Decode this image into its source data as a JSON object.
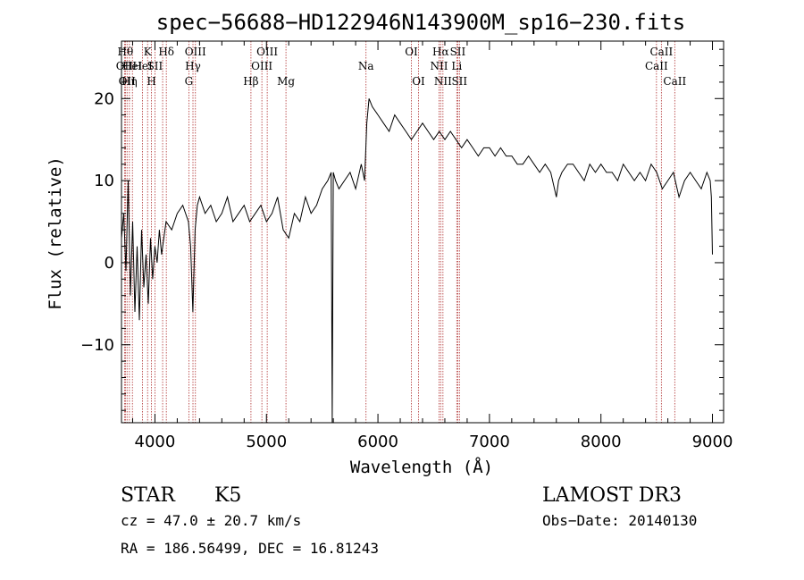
{
  "chart_data": {
    "type": "line",
    "title": "spec−56688−HD122946N143900M_sp16−230.fits",
    "xlabel": "Wavelength (Å)",
    "ylabel": "Flux (relative)",
    "xlim": [
      3700,
      9100
    ],
    "ylim": [
      -19.5,
      27
    ],
    "xticks": [
      {
        "v": 4000,
        "label": "4000"
      },
      {
        "v": 5000,
        "label": "5000"
      },
      {
        "v": 6000,
        "label": "6000"
      },
      {
        "v": 7000,
        "label": "7000"
      },
      {
        "v": 8000,
        "label": "8000"
      },
      {
        "v": 9000,
        "label": "9000"
      }
    ],
    "yticks": [
      {
        "v": -10,
        "label": "−10"
      },
      {
        "v": 0,
        "label": "0"
      },
      {
        "v": 10,
        "label": "10"
      },
      {
        "v": 20,
        "label": "20"
      }
    ],
    "line_color": "#000000",
    "ref_line_color": "#b03030",
    "series": [
      {
        "x": [
          3700,
          3720,
          3740,
          3760,
          3780,
          3800,
          3820,
          3840,
          3860,
          3880,
          3900,
          3920,
          3940,
          3960,
          3980,
          4000,
          4020,
          4040,
          4060,
          4080,
          4100,
          4150,
          4200,
          4250,
          4300,
          4320,
          4340,
          4360,
          4380,
          4400,
          4450,
          4500,
          4550,
          4600,
          4650,
          4700,
          4750,
          4800,
          4850,
          4900,
          4950,
          5000,
          5050,
          5100,
          5150,
          5200,
          5250,
          5300,
          5350,
          5400,
          5450,
          5500,
          5550,
          5580,
          5590,
          5600,
          5620,
          5650,
          5700,
          5750,
          5800,
          5850,
          5880,
          5900,
          5920,
          5950,
          6000,
          6050,
          6100,
          6150,
          6200,
          6250,
          6300,
          6350,
          6400,
          6450,
          6500,
          6550,
          6600,
          6650,
          6700,
          6750,
          6800,
          6850,
          6900,
          6950,
          7000,
          7050,
          7100,
          7150,
          7200,
          7250,
          7300,
          7350,
          7400,
          7450,
          7500,
          7550,
          7600,
          7620,
          7650,
          7700,
          7750,
          7800,
          7850,
          7900,
          7950,
          8000,
          8050,
          8100,
          8150,
          8200,
          8250,
          8300,
          8350,
          8400,
          8450,
          8500,
          8550,
          8600,
          8650,
          8700,
          8750,
          8800,
          8850,
          8900,
          8950,
          8980,
          8990,
          9000
        ],
        "y": [
          3,
          6,
          -1,
          10,
          -4,
          5,
          -6,
          2,
          -7,
          4,
          -3,
          1,
          -5,
          3,
          -2,
          2,
          0,
          4,
          1,
          3,
          5,
          4,
          6,
          7,
          5,
          2,
          -6,
          4,
          7,
          8,
          6,
          7,
          5,
          6,
          8,
          5,
          6,
          7,
          5,
          6,
          7,
          5,
          6,
          8,
          4,
          3,
          6,
          5,
          8,
          6,
          7,
          9,
          10,
          11,
          -19.5,
          11,
          10,
          9,
          10,
          11,
          9,
          12,
          10,
          17,
          20,
          19,
          18,
          17,
          16,
          18,
          17,
          16,
          15,
          16,
          17,
          16,
          15,
          16,
          15,
          16,
          15,
          14,
          15,
          14,
          13,
          14,
          14,
          13,
          14,
          13,
          13,
          12,
          12,
          13,
          12,
          11,
          12,
          11,
          8,
          10,
          11,
          12,
          12,
          11,
          10,
          12,
          11,
          12,
          11,
          11,
          10,
          12,
          11,
          10,
          11,
          10,
          12,
          11,
          9,
          10,
          11,
          8,
          10,
          11,
          10,
          9,
          11,
          10,
          8,
          1
        ]
      }
    ],
    "reference_lines": [
      {
        "x": 3735,
        "row": 1,
        "label": "Hθ"
      },
      {
        "x": 3727,
        "row": 2,
        "label": "OII"
      },
      {
        "x": 3750,
        "row": 3,
        "label": "OII"
      },
      {
        "x": 3771,
        "row": 3,
        "label": "Hη"
      },
      {
        "x": 3798,
        "row": 2,
        "label": "HeI"
      },
      {
        "x": 3889,
        "row": 2,
        "label": "HeI"
      },
      {
        "x": 3934,
        "row": 1,
        "label": "K"
      },
      {
        "x": 3969,
        "row": 3,
        "label": "H"
      },
      {
        "x": 4000,
        "row": 2,
        "label": "SII"
      },
      {
        "x": 4102,
        "row": 1,
        "label": "Hδ"
      },
      {
        "x": 4069,
        "row": 2,
        "label": ""
      },
      {
        "x": 4304,
        "row": 3,
        "label": "G"
      },
      {
        "x": 4341,
        "row": 2,
        "label": "Hγ"
      },
      {
        "x": 4363,
        "row": 1,
        "label": "OIII"
      },
      {
        "x": 4861,
        "row": 3,
        "label": "Hβ"
      },
      {
        "x": 4959,
        "row": 2,
        "label": "OIII"
      },
      {
        "x": 5007,
        "row": 1,
        "label": "OIII"
      },
      {
        "x": 5175,
        "row": 3,
        "label": "Mg"
      },
      {
        "x": 5893,
        "row": 2,
        "label": "Na"
      },
      {
        "x": 6300,
        "row": 1,
        "label": "OI"
      },
      {
        "x": 6364,
        "row": 3,
        "label": "OI"
      },
      {
        "x": 6548,
        "row": 2,
        "label": "NII"
      },
      {
        "x": 6563,
        "row": 1,
        "label": "Hα"
      },
      {
        "x": 6583,
        "row": 3,
        "label": "NII"
      },
      {
        "x": 6707,
        "row": 2,
        "label": "Li"
      },
      {
        "x": 6716,
        "row": 1,
        "label": "SII"
      },
      {
        "x": 6731,
        "row": 3,
        "label": "SII"
      },
      {
        "x": 8498,
        "row": 2,
        "label": "CaII"
      },
      {
        "x": 8542,
        "row": 1,
        "label": "CaII"
      },
      {
        "x": 8662,
        "row": 3,
        "label": "CaII"
      }
    ]
  },
  "info": {
    "class": "STAR",
    "subclass": "K5",
    "cz": "cz = 47.0 ± 20.7 km/s",
    "coords": "RA = 186.56499, DEC =  16.81243",
    "survey": "LAMOST DR3",
    "obs_date": "Obs−Date: 20140130"
  }
}
